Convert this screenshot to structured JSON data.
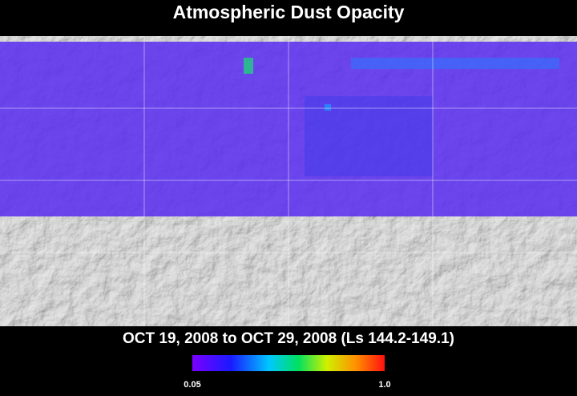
{
  "header": {
    "title": "Atmospheric Dust Opacity"
  },
  "footer": {
    "period": "OCT 19, 2008 to OCT 29, 2008 (Ls 144.2-149.1)"
  },
  "colorbar": {
    "ticks": [
      0.05,
      {
        "value": 1,
        "label": "1.0"
      }
    ]
  }
}
